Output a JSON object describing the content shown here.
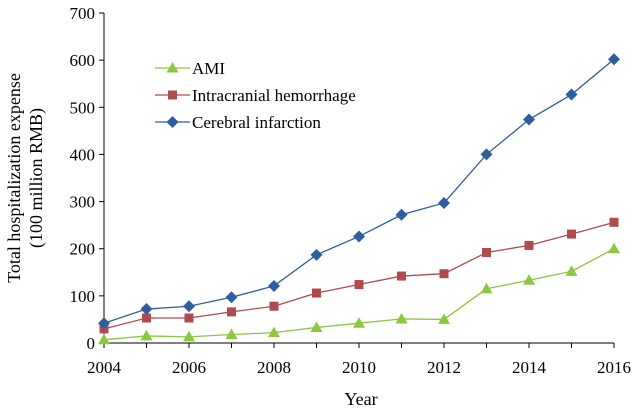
{
  "chart_data": {
    "type": "line",
    "title": "",
    "xlabel": "Year",
    "ylabel_line1": "Total hospitalization expense",
    "ylabel_line2": "(100 million RMB)",
    "x": [
      2004,
      2005,
      2006,
      2007,
      2008,
      2009,
      2010,
      2011,
      2012,
      2013,
      2014,
      2015,
      2016
    ],
    "x_ticks": [
      "2004",
      "2006",
      "2008",
      "2010",
      "2012",
      "2014",
      "2016"
    ],
    "y_ticks": [
      "0",
      "100",
      "200",
      "300",
      "400",
      "500",
      "600",
      "700"
    ],
    "xlim": [
      2004,
      2016
    ],
    "ylim": [
      0,
      700
    ],
    "grid": false,
    "legend_position": "top-left",
    "series": [
      {
        "name": "AMI",
        "marker": "triangle",
        "color": "#8dc63f",
        "values": [
          7,
          15,
          13,
          18,
          22,
          33,
          42,
          51,
          50,
          115,
          133,
          152,
          200
        ]
      },
      {
        "name": "Intracranial hemorrhage",
        "marker": "square",
        "color": "#b04a4d",
        "values": [
          30,
          53,
          53,
          66,
          78,
          106,
          124,
          142,
          147,
          192,
          207,
          231,
          256
        ]
      },
      {
        "name": "Cerebral infarction",
        "marker": "diamond",
        "color": "#2f5e9e",
        "values": [
          42,
          72,
          78,
          97,
          121,
          187,
          226,
          272,
          297,
          400,
          474,
          527,
          602
        ]
      }
    ]
  }
}
